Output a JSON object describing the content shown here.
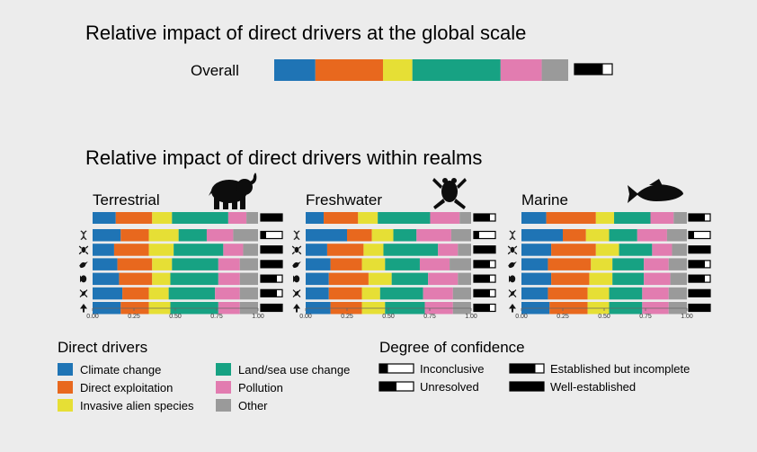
{
  "colors": {
    "climate": "#1f74b5",
    "exploitation": "#e8681e",
    "invasive": "#e6df35",
    "landsea": "#17a283",
    "pollution": "#e27cb0",
    "other": "#9a9a9a"
  },
  "titles": {
    "global": "Relative impact of direct drivers at the global scale",
    "realms": "Relative impact of direct drivers within realms"
  },
  "overall_label": "Overall",
  "legend": {
    "drivers_title": "Direct drivers",
    "drivers": [
      {
        "key": "climate",
        "label": "Climate change"
      },
      {
        "key": "exploitation",
        "label": "Direct exploitation"
      },
      {
        "key": "invasive",
        "label": "Invasive alien species"
      },
      {
        "key": "landsea",
        "label": "Land/sea use change"
      },
      {
        "key": "pollution",
        "label": "Pollution"
      },
      {
        "key": "other",
        "label": "Other"
      }
    ],
    "confidence_title": "Degree of confidence",
    "confidence": [
      {
        "level": 1,
        "label": "Inconclusive"
      },
      {
        "level": 2,
        "label": "Unresolved"
      },
      {
        "level": 3,
        "label": "Established but incomplete"
      },
      {
        "level": 4,
        "label": "Well-established"
      }
    ]
  },
  "chart_data": {
    "type": "bar",
    "stacked": true,
    "xlim": [
      0,
      1
    ],
    "x_ticks": [
      "0.00",
      "0.25",
      "0.50",
      "0.75",
      "1.00"
    ],
    "series_order": [
      "climate",
      "exploitation",
      "invasive",
      "landsea",
      "pollution",
      "other"
    ],
    "overall": {
      "values": [
        0.14,
        0.23,
        0.1,
        0.3,
        0.14,
        0.09
      ],
      "confidence": 3
    },
    "row_icons": [
      "dna-icon",
      "frog-icon",
      "bird-icon",
      "fish-icon",
      "insect-icon",
      "tree-icon"
    ],
    "realms": [
      {
        "name": "Terrestrial",
        "icon": "elephant-icon",
        "total": {
          "values": [
            0.14,
            0.22,
            0.12,
            0.34,
            0.11,
            0.07
          ],
          "confidence": 4
        },
        "rows": [
          {
            "values": [
              0.17,
              0.17,
              0.18,
              0.17,
              0.16,
              0.15
            ],
            "confidence": 1
          },
          {
            "values": [
              0.13,
              0.21,
              0.15,
              0.3,
              0.12,
              0.09
            ],
            "confidence": 4
          },
          {
            "values": [
              0.15,
              0.21,
              0.12,
              0.28,
              0.13,
              0.11
            ],
            "confidence": 4
          },
          {
            "values": [
              0.16,
              0.2,
              0.11,
              0.29,
              0.13,
              0.11
            ],
            "confidence": 3
          },
          {
            "values": [
              0.18,
              0.16,
              0.12,
              0.28,
              0.15,
              0.11
            ],
            "confidence": 3
          },
          {
            "values": [
              0.17,
              0.17,
              0.13,
              0.29,
              0.13,
              0.11
            ],
            "confidence": 4
          }
        ]
      },
      {
        "name": "Freshwater",
        "icon": "frog-icon",
        "total": {
          "values": [
            0.11,
            0.21,
            0.12,
            0.32,
            0.18,
            0.07
          ],
          "confidence": 3
        },
        "rows": [
          {
            "values": [
              0.25,
              0.15,
              0.13,
              0.14,
              0.21,
              0.12
            ],
            "confidence": 1
          },
          {
            "values": [
              0.13,
              0.22,
              0.12,
              0.33,
              0.12,
              0.08
            ],
            "confidence": 4
          },
          {
            "values": [
              0.15,
              0.19,
              0.14,
              0.21,
              0.18,
              0.13
            ],
            "confidence": 3
          },
          {
            "values": [
              0.14,
              0.24,
              0.14,
              0.22,
              0.18,
              0.08
            ],
            "confidence": 3
          },
          {
            "values": [
              0.14,
              0.2,
              0.11,
              0.26,
              0.18,
              0.11
            ],
            "confidence": 3
          },
          {
            "values": [
              0.15,
              0.19,
              0.14,
              0.24,
              0.17,
              0.11
            ],
            "confidence": 3
          }
        ]
      },
      {
        "name": "Marine",
        "icon": "fish-icon",
        "total": {
          "values": [
            0.15,
            0.3,
            0.11,
            0.22,
            0.14,
            0.08
          ],
          "confidence": 3
        },
        "rows": [
          {
            "values": [
              0.25,
              0.14,
              0.14,
              0.17,
              0.18,
              0.12
            ],
            "confidence": 1
          },
          {
            "values": [
              0.18,
              0.27,
              0.14,
              0.2,
              0.12,
              0.09
            ],
            "confidence": 4
          },
          {
            "values": [
              0.16,
              0.26,
              0.13,
              0.19,
              0.15,
              0.11
            ],
            "confidence": 3
          },
          {
            "values": [
              0.18,
              0.23,
              0.14,
              0.19,
              0.16,
              0.1
            ],
            "confidence": 3
          },
          {
            "values": [
              0.16,
              0.24,
              0.13,
              0.2,
              0.16,
              0.11
            ],
            "confidence": 4
          },
          {
            "values": [
              0.17,
              0.23,
              0.13,
              0.2,
              0.16,
              0.11
            ],
            "confidence": 4
          }
        ]
      }
    ]
  }
}
